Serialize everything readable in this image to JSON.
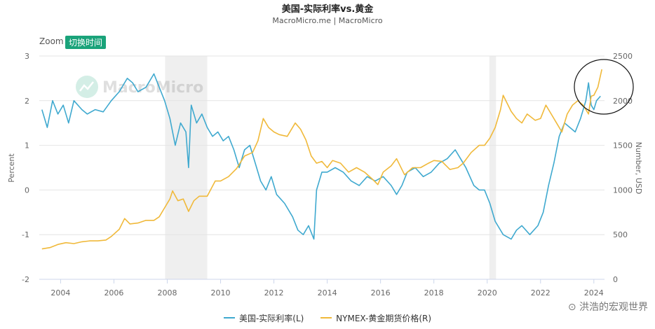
{
  "chart_data": {
    "type": "line",
    "title": "美国-实际利率vs.黄金",
    "subtitle": "MacroMicro.me | MacroMicro",
    "zoom_label": "Zoom",
    "zoom_button": "切换时间",
    "watermark": "MacroMicro",
    "corner_watermark": "洪浩的宏观世界",
    "ylabel_left": "Percent",
    "ylabel_right": "Number, USD",
    "xlim": [
      2003.2,
      2024.4
    ],
    "ylim_left": [
      -2,
      3
    ],
    "ylim_right": [
      0,
      2500
    ],
    "x_ticks": [
      "2004",
      "2006",
      "2008",
      "2010",
      "2012",
      "2014",
      "2016",
      "2018",
      "2020",
      "2022",
      "2024"
    ],
    "y_left_ticks": [
      "3",
      "2",
      "1",
      "0",
      "-1",
      "-2"
    ],
    "y_right_ticks": [
      "2500",
      "2000",
      "1500",
      "1000",
      "500",
      "0"
    ],
    "shaded_periods": [
      [
        2007.92,
        2009.5
      ],
      [
        2020.08,
        2020.33
      ]
    ],
    "grid": "horizontal",
    "legend_position": "bottom",
    "annotation": "circle around the 2023–2024 peak",
    "series": [
      {
        "name": "美国-实际利率(L)",
        "axis": "left",
        "color": "#3fa9cf",
        "points": [
          [
            2003.3,
            1.8
          ],
          [
            2003.5,
            1.4
          ],
          [
            2003.7,
            2.0
          ],
          [
            2003.9,
            1.7
          ],
          [
            2004.1,
            1.9
          ],
          [
            2004.3,
            1.5
          ],
          [
            2004.5,
            2.0
          ],
          [
            2004.8,
            1.8
          ],
          [
            2005.0,
            1.7
          ],
          [
            2005.3,
            1.8
          ],
          [
            2005.6,
            1.75
          ],
          [
            2005.9,
            2.0
          ],
          [
            2006.2,
            2.2
          ],
          [
            2006.5,
            2.5
          ],
          [
            2006.7,
            2.4
          ],
          [
            2006.9,
            2.2
          ],
          [
            2007.2,
            2.3
          ],
          [
            2007.5,
            2.6
          ],
          [
            2007.7,
            2.3
          ],
          [
            2007.9,
            2.0
          ],
          [
            2008.1,
            1.6
          ],
          [
            2008.3,
            1.0
          ],
          [
            2008.5,
            1.5
          ],
          [
            2008.7,
            1.3
          ],
          [
            2008.8,
            0.5
          ],
          [
            2008.9,
            1.9
          ],
          [
            2009.1,
            1.5
          ],
          [
            2009.3,
            1.7
          ],
          [
            2009.5,
            1.4
          ],
          [
            2009.7,
            1.2
          ],
          [
            2009.9,
            1.3
          ],
          [
            2010.1,
            1.1
          ],
          [
            2010.3,
            1.2
          ],
          [
            2010.5,
            0.9
          ],
          [
            2010.7,
            0.5
          ],
          [
            2010.9,
            0.9
          ],
          [
            2011.1,
            1.0
          ],
          [
            2011.3,
            0.6
          ],
          [
            2011.5,
            0.2
          ],
          [
            2011.7,
            0.0
          ],
          [
            2011.9,
            0.3
          ],
          [
            2012.1,
            -0.1
          ],
          [
            2012.4,
            -0.3
          ],
          [
            2012.7,
            -0.6
          ],
          [
            2012.9,
            -0.9
          ],
          [
            2013.1,
            -1.0
          ],
          [
            2013.3,
            -0.8
          ],
          [
            2013.5,
            -1.1
          ],
          [
            2013.6,
            0.0
          ],
          [
            2013.8,
            0.4
          ],
          [
            2014.0,
            0.4
          ],
          [
            2014.3,
            0.5
          ],
          [
            2014.6,
            0.4
          ],
          [
            2014.9,
            0.2
          ],
          [
            2015.2,
            0.1
          ],
          [
            2015.5,
            0.3
          ],
          [
            2015.8,
            0.2
          ],
          [
            2016.1,
            0.3
          ],
          [
            2016.4,
            0.1
          ],
          [
            2016.6,
            -0.1
          ],
          [
            2016.8,
            0.1
          ],
          [
            2017.0,
            0.4
          ],
          [
            2017.3,
            0.5
          ],
          [
            2017.6,
            0.3
          ],
          [
            2017.9,
            0.4
          ],
          [
            2018.2,
            0.6
          ],
          [
            2018.5,
            0.7
          ],
          [
            2018.8,
            0.9
          ],
          [
            2019.0,
            0.7
          ],
          [
            2019.2,
            0.5
          ],
          [
            2019.5,
            0.1
          ],
          [
            2019.7,
            0.0
          ],
          [
            2019.9,
            0.0
          ],
          [
            2020.1,
            -0.3
          ],
          [
            2020.3,
            -0.7
          ],
          [
            2020.6,
            -1.0
          ],
          [
            2020.9,
            -1.1
          ],
          [
            2021.1,
            -0.9
          ],
          [
            2021.3,
            -0.8
          ],
          [
            2021.6,
            -1.0
          ],
          [
            2021.9,
            -0.8
          ],
          [
            2022.1,
            -0.5
          ],
          [
            2022.3,
            0.1
          ],
          [
            2022.5,
            0.6
          ],
          [
            2022.7,
            1.2
          ],
          [
            2022.9,
            1.5
          ],
          [
            2023.1,
            1.4
          ],
          [
            2023.3,
            1.3
          ],
          [
            2023.5,
            1.6
          ],
          [
            2023.7,
            2.0
          ],
          [
            2023.8,
            2.4
          ],
          [
            2023.9,
            1.9
          ],
          [
            2024.0,
            1.8
          ],
          [
            2024.1,
            2.0
          ],
          [
            2024.25,
            2.1
          ]
        ]
      },
      {
        "name": "NYMEX-黄金期货价格(R)",
        "axis": "right",
        "color": "#f0b93a",
        "points": [
          [
            2003.3,
            340
          ],
          [
            2003.6,
            355
          ],
          [
            2003.9,
            390
          ],
          [
            2004.2,
            410
          ],
          [
            2004.5,
            400
          ],
          [
            2004.8,
            420
          ],
          [
            2005.1,
            430
          ],
          [
            2005.4,
            430
          ],
          [
            2005.7,
            440
          ],
          [
            2005.9,
            480
          ],
          [
            2006.2,
            560
          ],
          [
            2006.4,
            680
          ],
          [
            2006.6,
            620
          ],
          [
            2006.9,
            630
          ],
          [
            2007.2,
            660
          ],
          [
            2007.5,
            660
          ],
          [
            2007.7,
            700
          ],
          [
            2007.9,
            800
          ],
          [
            2008.1,
            900
          ],
          [
            2008.2,
            990
          ],
          [
            2008.4,
            880
          ],
          [
            2008.6,
            900
          ],
          [
            2008.8,
            760
          ],
          [
            2009.0,
            880
          ],
          [
            2009.2,
            930
          ],
          [
            2009.5,
            930
          ],
          [
            2009.8,
            1100
          ],
          [
            2010.0,
            1100
          ],
          [
            2010.3,
            1150
          ],
          [
            2010.6,
            1240
          ],
          [
            2010.9,
            1380
          ],
          [
            2011.2,
            1420
          ],
          [
            2011.4,
            1550
          ],
          [
            2011.6,
            1800
          ],
          [
            2011.8,
            1700
          ],
          [
            2012.0,
            1650
          ],
          [
            2012.2,
            1620
          ],
          [
            2012.5,
            1600
          ],
          [
            2012.8,
            1750
          ],
          [
            2013.0,
            1680
          ],
          [
            2013.2,
            1560
          ],
          [
            2013.4,
            1380
          ],
          [
            2013.6,
            1300
          ],
          [
            2013.8,
            1320
          ],
          [
            2014.0,
            1250
          ],
          [
            2014.2,
            1330
          ],
          [
            2014.5,
            1300
          ],
          [
            2014.8,
            1200
          ],
          [
            2015.1,
            1250
          ],
          [
            2015.4,
            1200
          ],
          [
            2015.7,
            1120
          ],
          [
            2015.9,
            1060
          ],
          [
            2016.1,
            1200
          ],
          [
            2016.4,
            1270
          ],
          [
            2016.6,
            1350
          ],
          [
            2016.9,
            1170
          ],
          [
            2017.2,
            1250
          ],
          [
            2017.5,
            1250
          ],
          [
            2017.8,
            1300
          ],
          [
            2018.0,
            1330
          ],
          [
            2018.3,
            1320
          ],
          [
            2018.6,
            1230
          ],
          [
            2018.9,
            1250
          ],
          [
            2019.1,
            1300
          ],
          [
            2019.4,
            1420
          ],
          [
            2019.7,
            1500
          ],
          [
            2019.9,
            1500
          ],
          [
            2020.1,
            1580
          ],
          [
            2020.3,
            1700
          ],
          [
            2020.5,
            1900
          ],
          [
            2020.6,
            2060
          ],
          [
            2020.9,
            1880
          ],
          [
            2021.1,
            1800
          ],
          [
            2021.3,
            1750
          ],
          [
            2021.5,
            1850
          ],
          [
            2021.8,
            1780
          ],
          [
            2022.0,
            1800
          ],
          [
            2022.2,
            1950
          ],
          [
            2022.4,
            1850
          ],
          [
            2022.6,
            1750
          ],
          [
            2022.8,
            1650
          ],
          [
            2023.0,
            1850
          ],
          [
            2023.2,
            1950
          ],
          [
            2023.4,
            2000
          ],
          [
            2023.6,
            1950
          ],
          [
            2023.8,
            1850
          ],
          [
            2023.9,
            2050
          ],
          [
            2024.0,
            2060
          ],
          [
            2024.15,
            2150
          ],
          [
            2024.3,
            2350
          ]
        ]
      }
    ]
  }
}
